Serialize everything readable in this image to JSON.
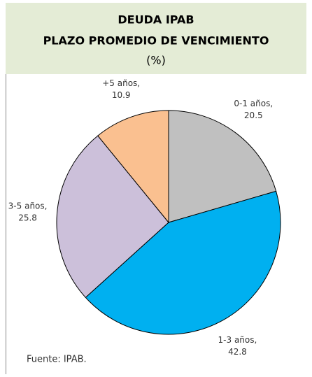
{
  "chart_data": {
    "type": "pie",
    "title": [
      "DEUDA IPAB",
      "PLAZO PROMEDIO DE VENCIMIENTO",
      "(%)"
    ],
    "categories": [
      "0-1 años,",
      "1-3 años,",
      "3-5 años,",
      "+5 años,"
    ],
    "values": [
      20.5,
      42.8,
      25.8,
      10.9
    ],
    "colors": [
      "#c0c0c0",
      "#00b0f0",
      "#ccc0da",
      "#fac090"
    ],
    "source": "Fuente: IPAB."
  }
}
